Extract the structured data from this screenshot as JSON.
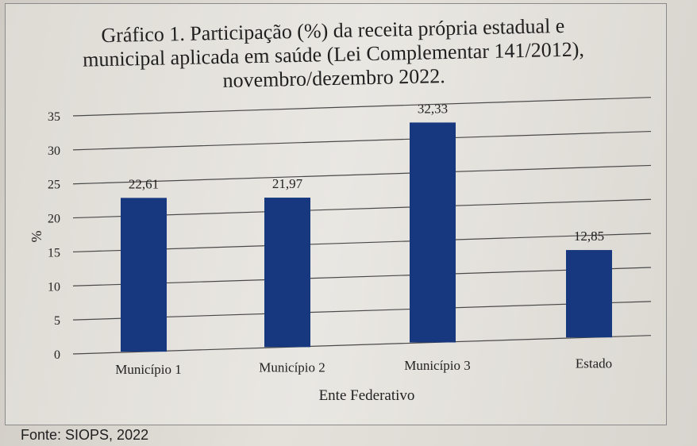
{
  "chart_data": {
    "type": "bar",
    "title": "Gráfico 1. Participação (%) da receita própria estadual e municipal aplicada em saúde (Lei Complementar 141/2012), novembro/dezembro 2022.",
    "title_lines": [
      "Gráfico 1. Participação (%) da receita própria estadual e",
      "municipal aplicada em saúde (Lei Complementar 141/2012),",
      "novembro/dezembro 2022."
    ],
    "categories": [
      "Município 1",
      "Município 2",
      "Município 3",
      "Estado"
    ],
    "values": [
      22.61,
      21.97,
      32.33,
      12.85
    ],
    "value_labels": [
      "22,61",
      "21,97",
      "32,33",
      "12,85"
    ],
    "xlabel": "Ente Federativo",
    "ylabel": "%",
    "ylim": [
      0,
      35
    ],
    "yticks": [
      "0",
      "5",
      "10",
      "15",
      "20",
      "25",
      "30",
      "35"
    ],
    "grid": true,
    "bar_color": "#17387f"
  },
  "source": "Fonte: SIOPS, 2022"
}
